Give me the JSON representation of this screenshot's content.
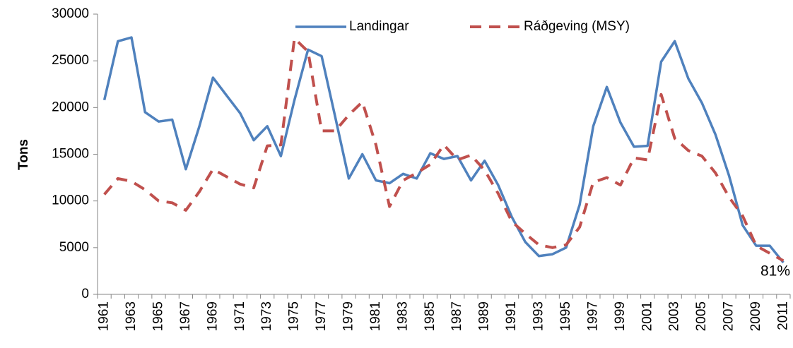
{
  "chart_data": {
    "type": "line",
    "y_label": "Tons",
    "annotation": "81%",
    "categories": [
      "1961",
      null,
      "1963",
      null,
      "1965",
      null,
      "1967",
      null,
      "1969",
      null,
      "1971",
      null,
      "1973",
      null,
      "1975",
      null,
      "1977",
      null,
      "1979",
      null,
      "1981",
      null,
      "1983",
      null,
      "1985",
      null,
      "1987",
      null,
      "1989",
      null,
      "1991",
      null,
      "1993",
      null,
      "1995",
      null,
      "1997",
      null,
      "1999",
      null,
      "2001",
      null,
      "2003",
      null,
      "2005",
      null,
      "2007",
      null,
      "2009",
      null,
      "2011"
    ],
    "series": [
      {
        "name": "Landingar",
        "color": "#4f81bd",
        "dashed": false,
        "values": [
          20800,
          27100,
          27500,
          19500,
          18500,
          18700,
          13400,
          18000,
          23200,
          21300,
          19400,
          16500,
          18000,
          14800,
          20800,
          26200,
          25500,
          19000,
          12400,
          15000,
          12200,
          11900,
          12900,
          12400,
          15100,
          14500,
          14800,
          12200,
          14300,
          11700,
          8300,
          5600,
          4100,
          4300,
          5000,
          9600,
          18000,
          22200,
          18400,
          15800,
          15900,
          24900,
          27100,
          23100,
          20500,
          17100,
          12700,
          7400,
          5200,
          5200,
          3400
        ]
      },
      {
        "name": "Ráðgeving (MSY)",
        "color": "#c0504d",
        "dashed": true,
        "values": [
          10700,
          12400,
          12100,
          11200,
          10000,
          9800,
          9000,
          11000,
          13400,
          12600,
          11800,
          11400,
          15900,
          16000,
          27400,
          26000,
          17500,
          17500,
          19200,
          20600,
          16000,
          9400,
          12200,
          13000,
          13900,
          16000,
          14400,
          14900,
          13300,
          10800,
          7800,
          6500,
          5300,
          5000,
          5300,
          7200,
          12000,
          12500,
          11700,
          14600,
          14400,
          21400,
          16700,
          15400,
          14800,
          13000,
          10400,
          8400,
          5200,
          4400,
          3600
        ]
      }
    ],
    "ylim": [
      0,
      30000
    ],
    "yticks": [
      0,
      5000,
      10000,
      15000,
      20000,
      25000,
      30000
    ],
    "grid": false,
    "legend": "top"
  }
}
